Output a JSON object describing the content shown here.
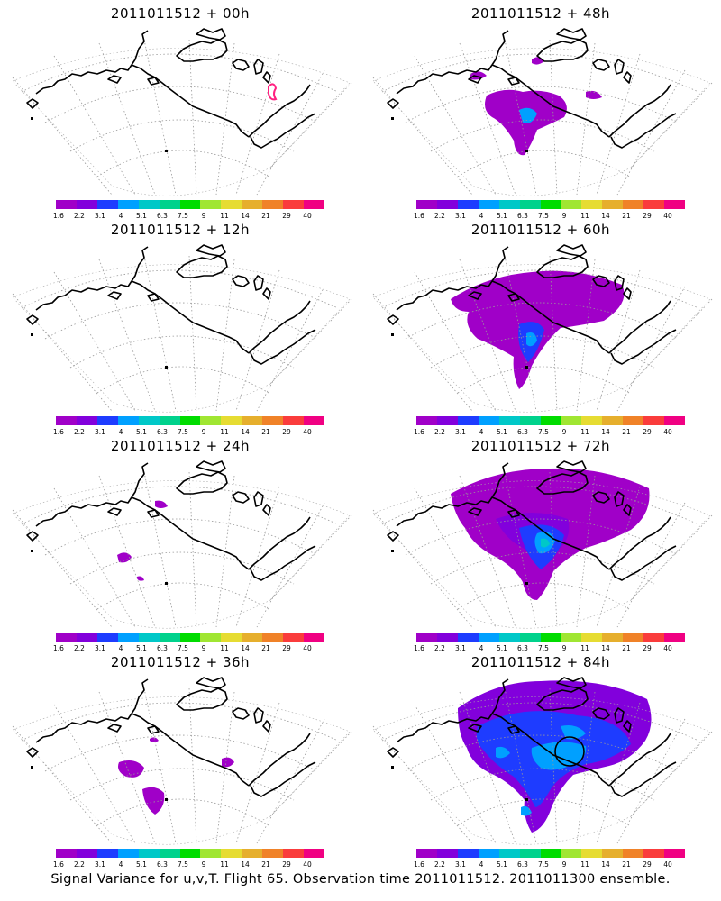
{
  "footer": "Signal Variance for u,v,T. Flight 65. Observation time 2011011512. 2011011300 ensemble.",
  "colorbar": {
    "ticks": [
      "1.6",
      "2.2",
      "3.1",
      "4",
      "5.1",
      "6.3",
      "7.5",
      "9",
      "11",
      "14",
      "21",
      "29",
      "40"
    ],
    "colors": [
      "#a000c8",
      "#8200dc",
      "#1e3cff",
      "#00a0ff",
      "#00c8c8",
      "#00d28c",
      "#00dc00",
      "#a0e632",
      "#e6dc32",
      "#e6af2d",
      "#f08228",
      "#fa3c3c",
      "#f00082"
    ]
  },
  "panels": [
    {
      "title": "2011011512 + 00h",
      "signal": "none"
    },
    {
      "title": "2011011512 + 48h",
      "signal": "moderate"
    },
    {
      "title": "2011011512 + 12h",
      "signal": "none"
    },
    {
      "title": "2011011512 + 60h",
      "signal": "large"
    },
    {
      "title": "2011011512 + 24h",
      "signal": "small"
    },
    {
      "title": "2011011512 + 72h",
      "signal": "larger"
    },
    {
      "title": "2011011512 + 36h",
      "signal": "small-medium"
    },
    {
      "title": "2011011512 + 84h",
      "signal": "largest"
    }
  ]
}
